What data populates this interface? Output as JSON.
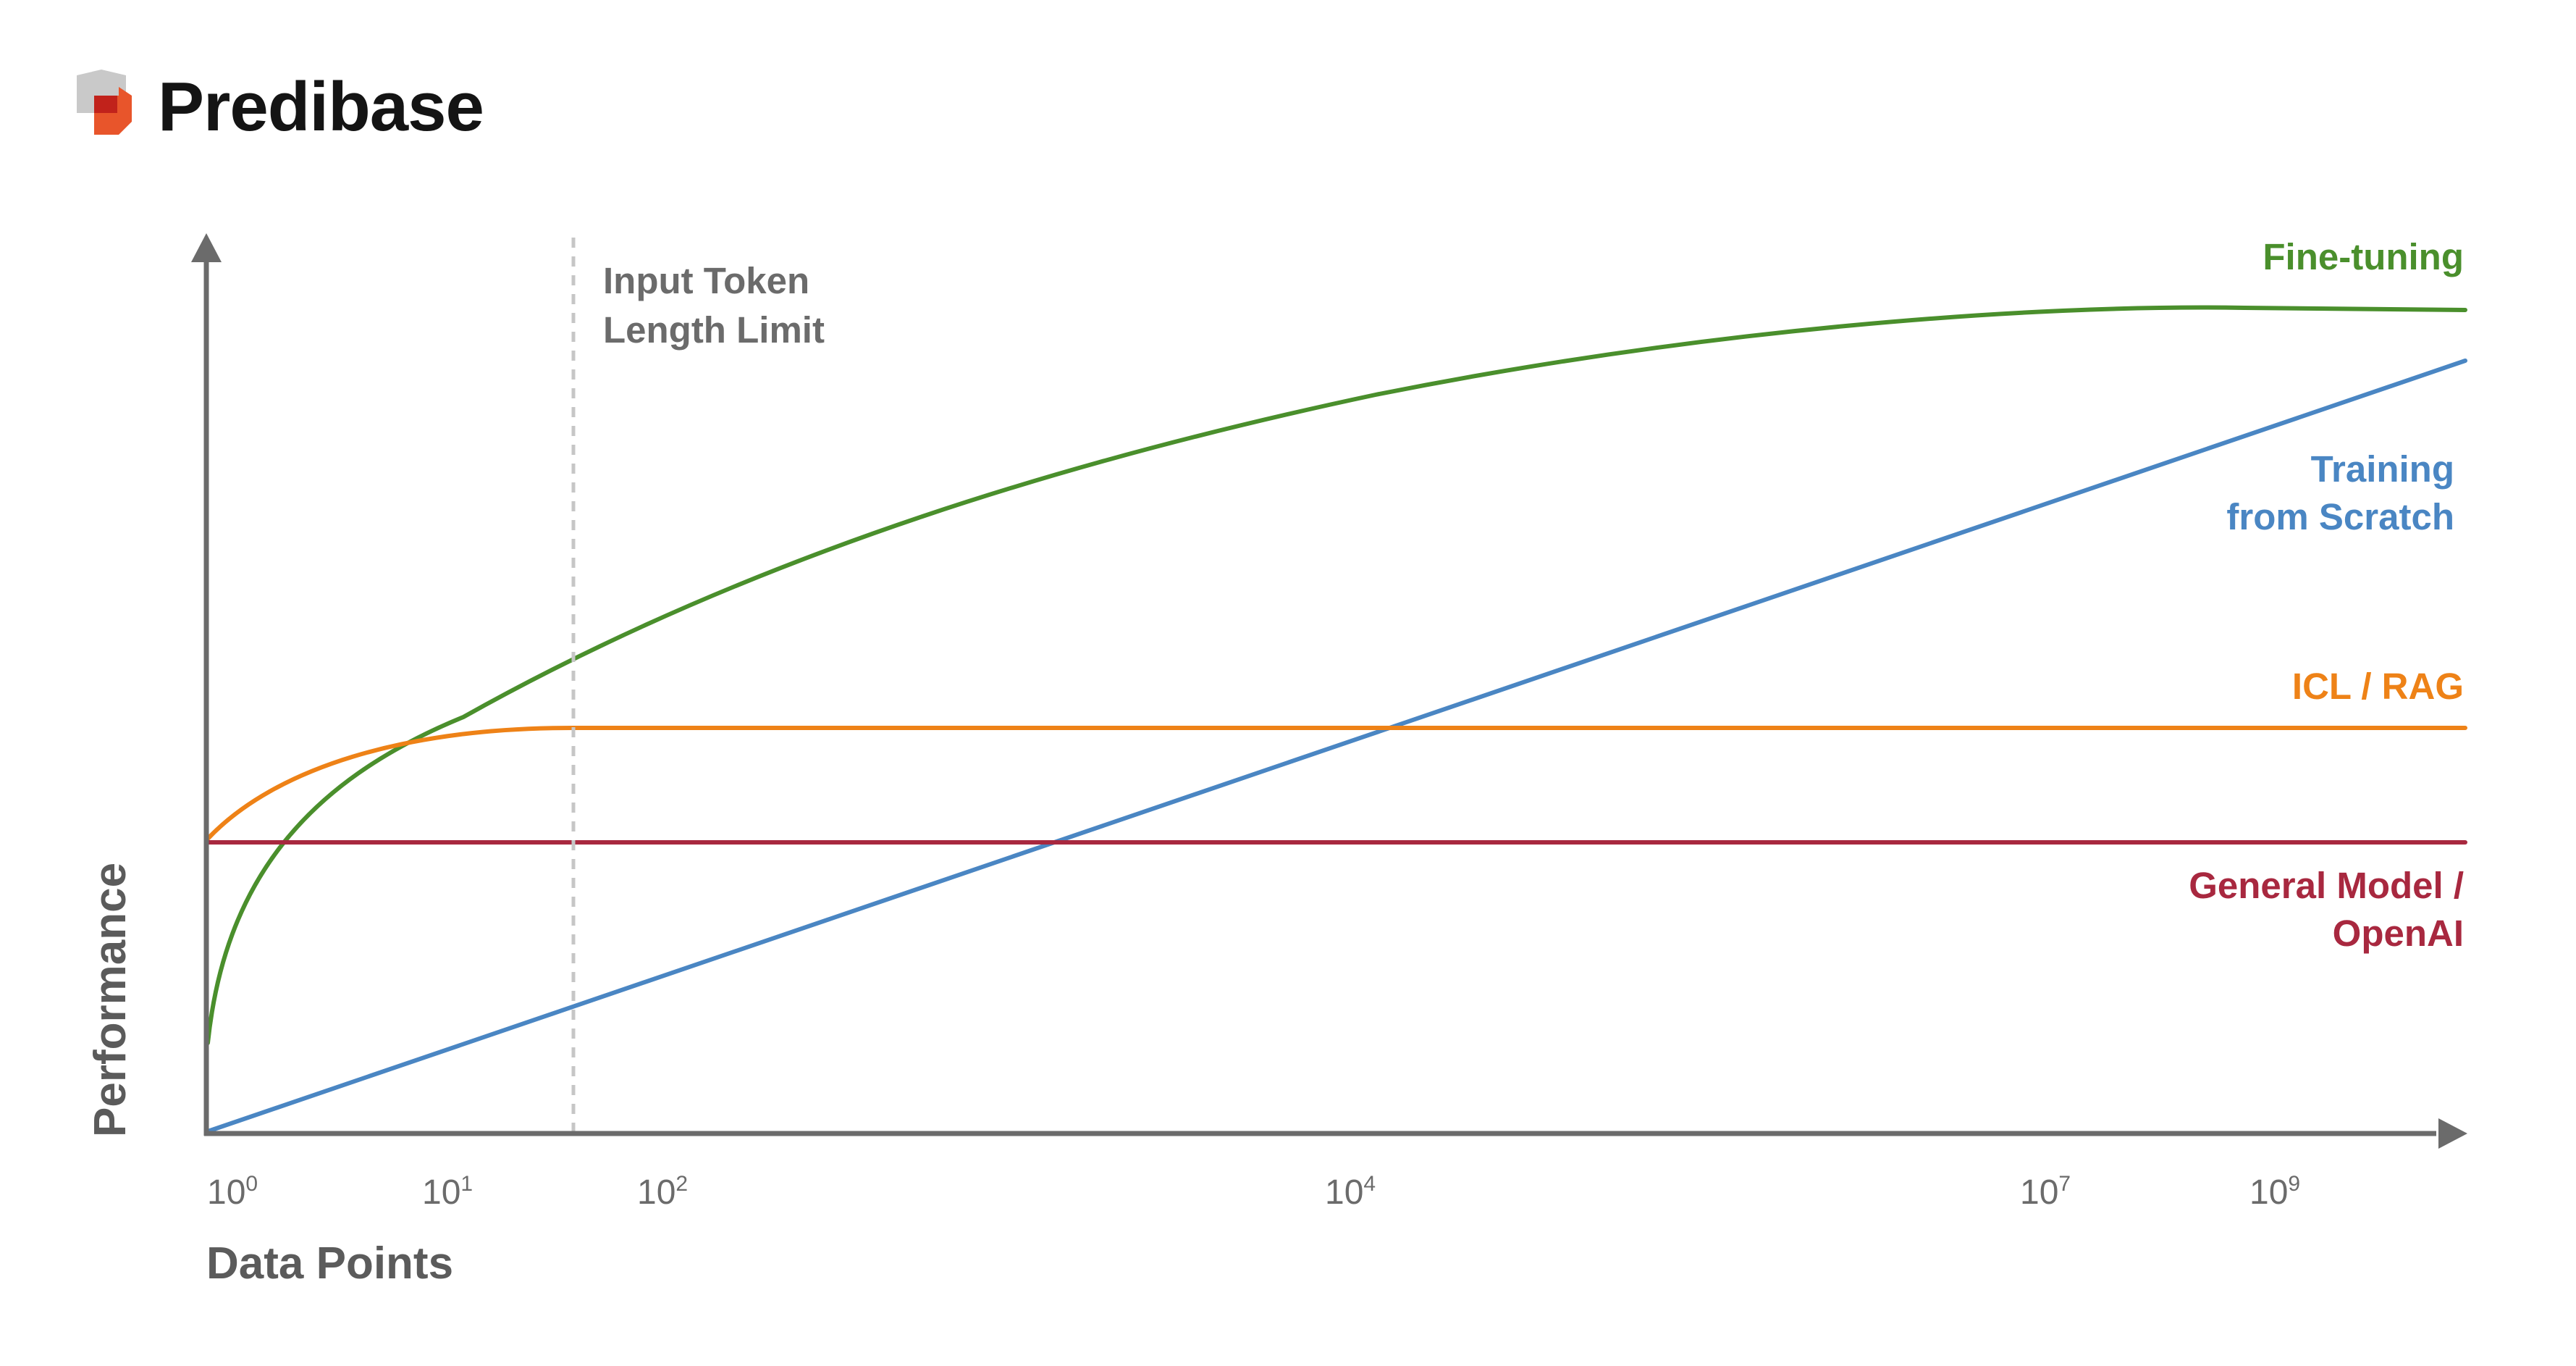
{
  "brand": {
    "name": "Predibase"
  },
  "colors": {
    "fine_tuning": "#4a8f2c",
    "training_from_scratch": "#4a86c3",
    "icl_rag": "#ee8217",
    "general_model": "#a8283f",
    "axis": "#6b6b6b",
    "limit_line": "#c6c6c6"
  },
  "chart_data": {
    "type": "line",
    "xlabel": "Data Points",
    "ylabel": "Performance",
    "x_scale": "log",
    "x_tick_labels": [
      {
        "base": "10",
        "exp": "0",
        "value": 1
      },
      {
        "base": "10",
        "exp": "1",
        "value": 10
      },
      {
        "base": "10",
        "exp": "2",
        "value": 100
      },
      {
        "base": "10",
        "exp": "4",
        "value": 10000
      },
      {
        "base": "10",
        "exp": "7",
        "value": 10000000
      },
      {
        "base": "10",
        "exp": "9",
        "value": 1000000000
      }
    ],
    "annotations": [
      {
        "type": "vertical-line",
        "style": "dashed",
        "lines": [
          "Input Token",
          "Length Limit"
        ]
      }
    ],
    "series": [
      {
        "key": "fine_tuning",
        "name_lines": [
          "Fine-tuning"
        ],
        "shape": "concave rise, then plateau"
      },
      {
        "key": "training_from_scratch",
        "name_lines": [
          "Training",
          "from Scratch"
        ],
        "shape": "straight rise"
      },
      {
        "key": "icl_rag",
        "name_lines": [
          "ICL / RAG"
        ],
        "shape": "quick rise, flat after input token limit"
      },
      {
        "key": "general_model",
        "name_lines": [
          "General Model /",
          "OpenAI"
        ],
        "shape": "constant"
      }
    ],
    "grid": false,
    "legend": "inline labels at right"
  }
}
